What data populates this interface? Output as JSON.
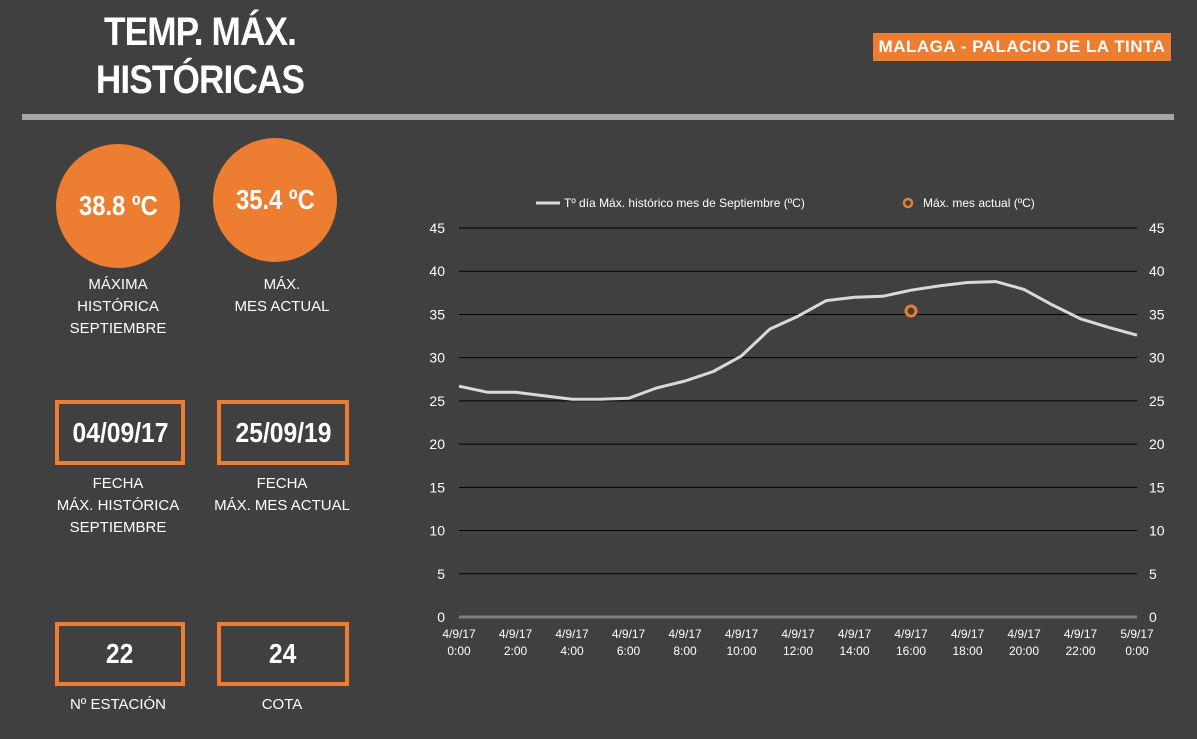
{
  "header": {
    "title_line1": "TEMP. MÁX.",
    "title_line2": "HISTÓRICAS",
    "station_name": "MALAGA - PALACIO DE LA TINTA"
  },
  "kpis": {
    "max_historic": {
      "value": "38.8 ºC",
      "label_lines": [
        "MÁXIMA",
        "HISTÓRICA",
        "SEPTIEMBRE"
      ]
    },
    "max_current": {
      "value": "35.4 ºC",
      "label_lines": [
        "MÁX.",
        "MES ACTUAL"
      ]
    },
    "date_historic": {
      "value": "04/09/17",
      "label_lines": [
        "FECHA",
        "MÁX. HISTÓRICA",
        "SEPTIEMBRE"
      ]
    },
    "date_current": {
      "value": "25/09/19",
      "label_lines": [
        "FECHA",
        "MÁX. MES ACTUAL"
      ]
    },
    "station_number": {
      "value": "22",
      "label": "Nº ESTACIÓN"
    },
    "elevation": {
      "value": "24",
      "label": "COTA"
    }
  },
  "colors": {
    "background": "#404040",
    "accent": "#ED7D31",
    "line": "#D9D9D9",
    "divider": "#A6A6A6"
  },
  "chart_data": {
    "type": "line",
    "legend_placement": "top",
    "grid": true,
    "ylim": [
      0,
      45
    ],
    "yticks": [
      0,
      5,
      10,
      15,
      20,
      25,
      30,
      35,
      40,
      45
    ],
    "x_tick_labels": [
      [
        "4/9/17",
        "0:00"
      ],
      [
        "4/9/17",
        "2:00"
      ],
      [
        "4/9/17",
        "4:00"
      ],
      [
        "4/9/17",
        "6:00"
      ],
      [
        "4/9/17",
        "8:00"
      ],
      [
        "4/9/17",
        "10:00"
      ],
      [
        "4/9/17",
        "12:00"
      ],
      [
        "4/9/17",
        "14:00"
      ],
      [
        "4/9/17",
        "16:00"
      ],
      [
        "4/9/17",
        "18:00"
      ],
      [
        "4/9/17",
        "20:00"
      ],
      [
        "4/9/17",
        "22:00"
      ],
      [
        "5/9/17",
        "0:00"
      ]
    ],
    "xlim_hours": [
      0,
      24
    ],
    "series": [
      {
        "name": "Tº día Máx. histórico mes de Septiembre (ºC)",
        "kind": "line",
        "x_hours": [
          0,
          1,
          2,
          3,
          4,
          5,
          6,
          7,
          8,
          9,
          10,
          11,
          12,
          13,
          14,
          15,
          16,
          17,
          18,
          19,
          20,
          21,
          22,
          23,
          24
        ],
        "values": [
          26.7,
          26.0,
          26.0,
          25.6,
          25.2,
          25.2,
          25.3,
          26.5,
          27.3,
          28.4,
          30.2,
          33.3,
          34.8,
          36.6,
          37.0,
          37.1,
          37.8,
          38.3,
          38.7,
          38.8,
          37.9,
          36.1,
          34.5,
          33.5,
          32.6
        ]
      },
      {
        "name": "Máx. mes actual (ºC)",
        "kind": "marker",
        "x_hours": [
          16
        ],
        "values": [
          35.4
        ]
      }
    ]
  }
}
